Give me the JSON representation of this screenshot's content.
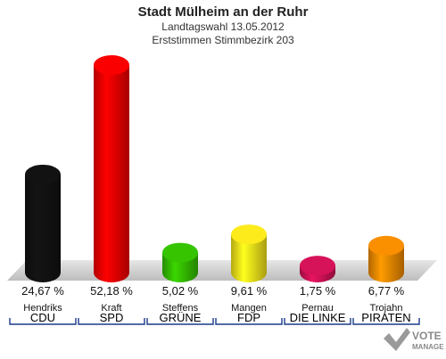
{
  "chart_data": {
    "type": "bar",
    "title": "Stadt Mülheim an der Ruhr",
    "subtitles": [
      "Landtagswahl 13.05.2012",
      "Erststimmen Stimmbezirk 203"
    ],
    "categories": [
      "CDU",
      "SPD",
      "GRÜNE",
      "FDP",
      "DIE LINKE",
      "PIRATEN"
    ],
    "candidates": [
      "Hendriks",
      "Kraft",
      "Steffens",
      "Mangen",
      "Pernau",
      "Trojahn"
    ],
    "values": [
      24.67,
      52.18,
      5.02,
      9.61,
      1.75,
      6.77
    ],
    "value_labels": [
      "24,67 %",
      "52,18 %",
      "5,02 %",
      "9,61 %",
      "1,75 %",
      "6,77 %"
    ],
    "colors": [
      "#111111",
      "#ee0000",
      "#33bb00",
      "#f2e01a",
      "#cc1155",
      "#ee8800"
    ],
    "ylim": [
      0,
      52.18
    ],
    "grid": false
  },
  "logo": {
    "line1": "VOTE",
    "line2": "MANAGER"
  }
}
